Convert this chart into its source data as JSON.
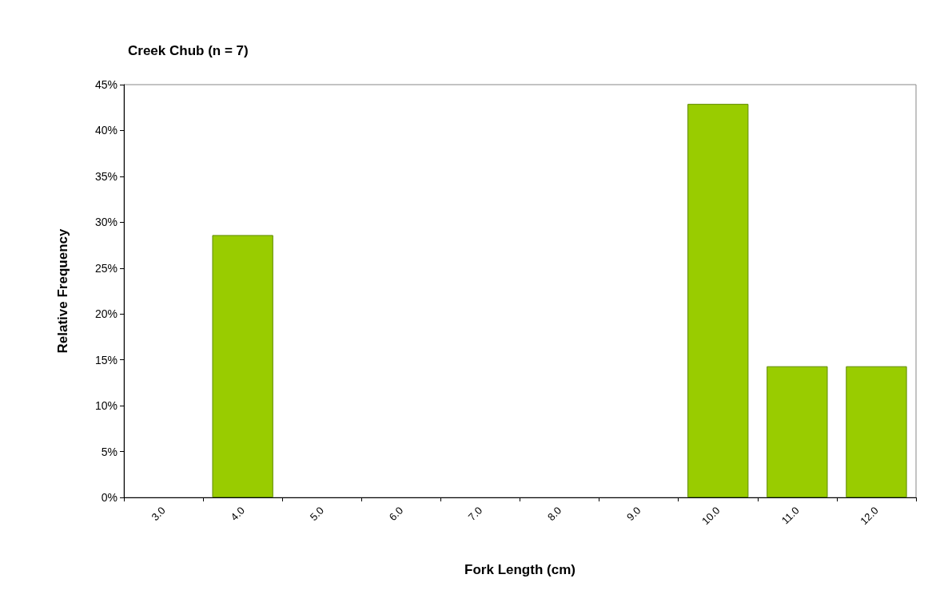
{
  "chart_data": {
    "type": "bar",
    "title": "Creek Chub (n = 7)",
    "xlabel": "Fork Length (cm)",
    "ylabel": "Relative Frequency",
    "categories": [
      "3.0",
      "4.0",
      "5.0",
      "6.0",
      "7.0",
      "8.0",
      "9.0",
      "10.0",
      "11.0",
      "12.0"
    ],
    "values": [
      0,
      28.6,
      0,
      0,
      0,
      0,
      0,
      42.9,
      14.3,
      14.3
    ],
    "color": "#99cc00",
    "ylim": [
      0,
      45
    ],
    "yticks": [
      {
        "value": 0,
        "label": "0%"
      },
      {
        "value": 5,
        "label": "5%"
      },
      {
        "value": 10,
        "label": "10%"
      },
      {
        "value": 15,
        "label": "15%"
      },
      {
        "value": 20,
        "label": "20%"
      },
      {
        "value": 25,
        "label": "25%"
      },
      {
        "value": 30,
        "label": "30%"
      },
      {
        "value": 35,
        "label": "35%"
      },
      {
        "value": 40,
        "label": "40%"
      },
      {
        "value": 45,
        "label": "45%"
      }
    ],
    "grid": false
  }
}
